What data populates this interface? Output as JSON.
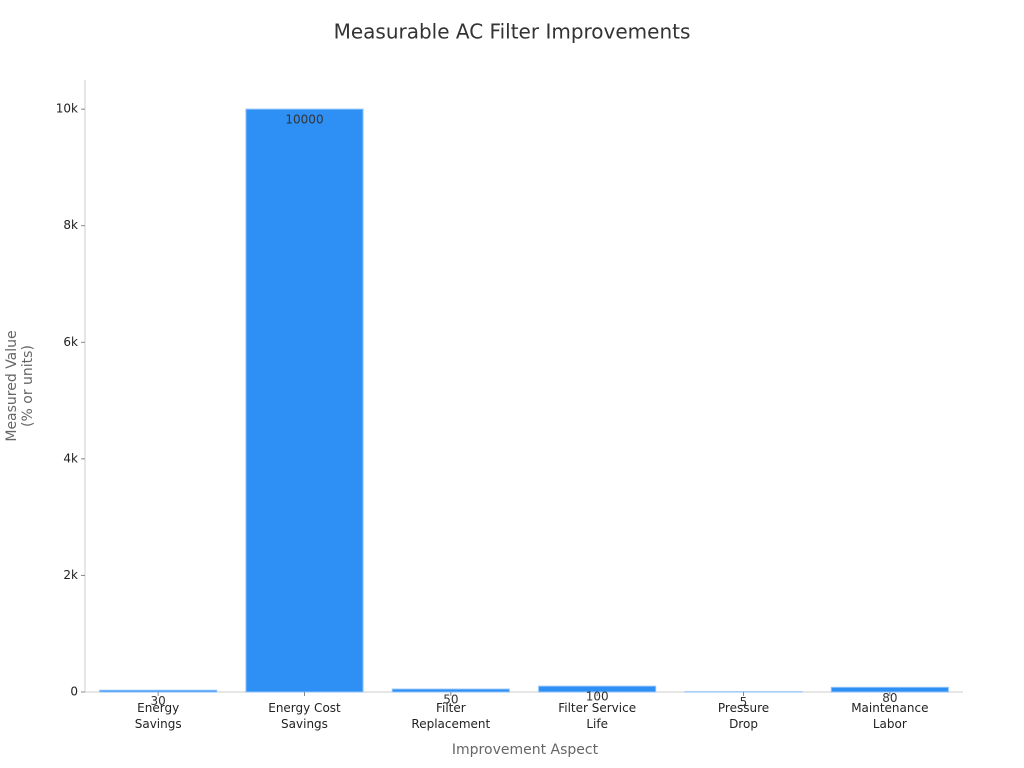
{
  "chart_data": {
    "type": "bar",
    "title": "Measurable AC Filter Improvements",
    "x_label": "Improvement Aspect",
    "y_label": "Measured Value (% or units)",
    "categories": [
      "Energy Savings",
      "Energy Cost Savings",
      "Filter Replacement",
      "Filter Service Life",
      "Pressure Drop",
      "Maintenance Labor"
    ],
    "values": [
      30,
      10000,
      50,
      100,
      5,
      80
    ],
    "color": "#2e8ff5",
    "ylim": [
      0,
      10500
    ],
    "yticks": [
      0,
      {
        "value": 2000,
        "label": "2k"
      },
      {
        "value": 4000,
        "label": "4k"
      },
      {
        "value": 6000,
        "label": "6k"
      },
      {
        "value": 8000,
        "label": "8k"
      },
      {
        "value": 10000,
        "label": "10k"
      }
    ],
    "grid": false
  }
}
